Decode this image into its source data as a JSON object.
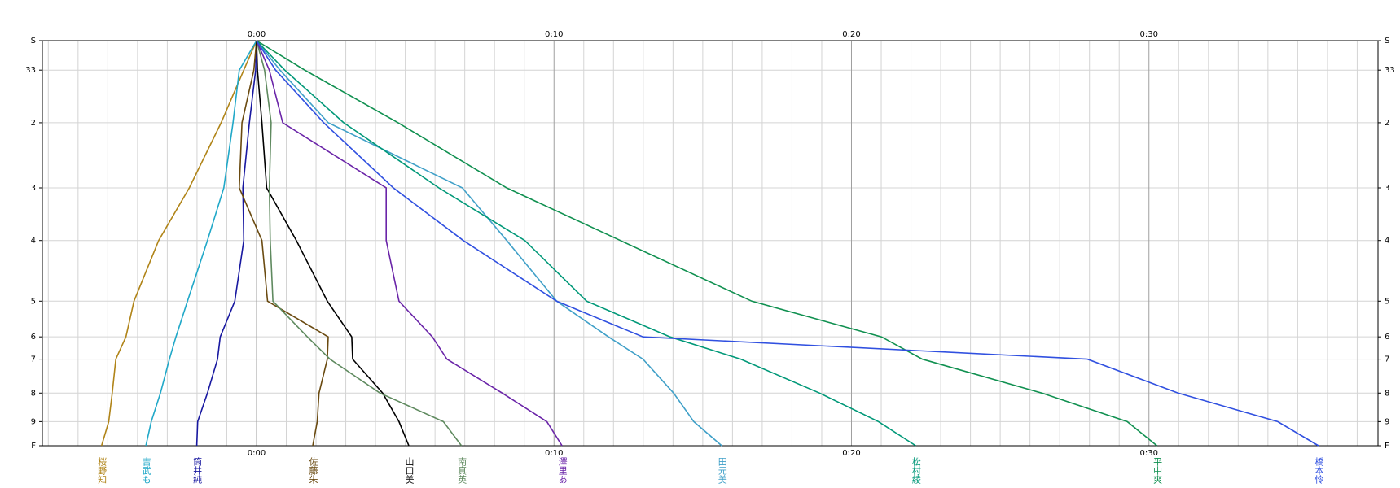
{
  "chart_data": {
    "type": "line",
    "orientation": "horizontal",
    "xlim": [
      -7.2,
      37.7
    ],
    "xticks": [
      {
        "value": 0,
        "label": "0:00"
      },
      {
        "value": 10,
        "label": "0:10"
      },
      {
        "value": 20,
        "label": "0:20"
      },
      {
        "value": 30,
        "label": "0:30"
      }
    ],
    "x_minor_ticks": [
      -7,
      -6,
      -5,
      -4,
      -3,
      -2,
      -1,
      1,
      2,
      3,
      4,
      5,
      6,
      7,
      8,
      9,
      11,
      12,
      13,
      14,
      15,
      16,
      17,
      18,
      19,
      21,
      22,
      23,
      24,
      25,
      26,
      27,
      28,
      29,
      31,
      32,
      33,
      34,
      35,
      36,
      37
    ],
    "ylim": [
      0,
      454
    ],
    "y_reversed": true,
    "yticks": [
      {
        "value": 0,
        "label": "S"
      },
      33,
      {
        "value": 92,
        "label": "2"
      },
      {
        "value": 165,
        "label": "3"
      },
      {
        "value": 224,
        "label": "4"
      },
      {
        "value": 292,
        "label": "5"
      },
      {
        "value": 332,
        "label": "6"
      },
      {
        "value": 357,
        "label": "7"
      },
      {
        "value": 395,
        "label": "8"
      },
      {
        "value": 427,
        "label": "9"
      },
      {
        "value": 454,
        "label": "F"
      }
    ],
    "grid": true,
    "series": [
      {
        "name": "桜野知",
        "color": "#b08418",
        "values": [
          0,
          -0.43,
          -1.19,
          -2.26,
          -3.29,
          -4.12,
          -4.39,
          -4.73,
          -4.85,
          -4.97,
          -5.21
        ]
      },
      {
        "name": "吉武も",
        "color": "#20a8c8",
        "values": [
          0,
          -0.58,
          -0.79,
          -1.1,
          -1.65,
          -2.32,
          -2.71,
          -2.93,
          -3.23,
          -3.54,
          -3.72
        ]
      },
      {
        "name": "筒井純",
        "color": "#1818a0",
        "values": [
          0,
          -0.03,
          -0.24,
          -0.46,
          -0.43,
          -0.73,
          -1.22,
          -1.31,
          -1.65,
          -1.98,
          -2.01
        ]
      },
      {
        "name": "佐藤朱",
        "color": "#6a4a10",
        "values": [
          0,
          -0.09,
          -0.49,
          -0.58,
          0.18,
          0.37,
          2.41,
          2.38,
          2.1,
          2.04,
          1.89
        ]
      },
      {
        "name": "山口美",
        "color": "#000000",
        "values": [
          0,
          0.03,
          0.18,
          0.34,
          1.34,
          2.38,
          3.2,
          3.23,
          4.24,
          4.79,
          5.12
        ]
      },
      {
        "name": "南真英",
        "color": "#5f8a5f",
        "values": [
          0,
          0.27,
          0.49,
          0.43,
          0.46,
          0.55,
          1.71,
          2.47,
          4.15,
          6.28,
          6.89
        ]
      },
      {
        "name": "澤里あ",
        "color": "#6a24a8",
        "values": [
          0,
          0.43,
          0.88,
          4.36,
          4.36,
          4.79,
          5.91,
          6.4,
          8.26,
          9.76,
          10.27
        ]
      },
      {
        "name": "田元美",
        "color": "#40a0c8",
        "values": [
          0,
          0.79,
          2.41,
          6.92,
          8.41,
          10.09,
          11.83,
          12.99,
          14.02,
          14.7,
          15.64
        ]
      },
      {
        "name": "松村綾",
        "color": "#009878",
        "values": [
          0,
          0.95,
          2.93,
          6.13,
          9.02,
          11.1,
          13.9,
          16.28,
          18.93,
          20.91,
          22.16
        ]
      },
      {
        "name": "平中爽",
        "color": "#109050",
        "values": [
          0,
          1.62,
          4.76,
          8.41,
          12.23,
          16.65,
          21.01,
          22.38,
          26.4,
          29.27,
          30.27
        ]
      },
      {
        "name": "橋本怜",
        "color": "#3050e0",
        "values": [
          0,
          0.64,
          2.26,
          4.6,
          6.95,
          10.09,
          12.99,
          27.93,
          30.98,
          34.33,
          35.7
        ]
      }
    ]
  }
}
